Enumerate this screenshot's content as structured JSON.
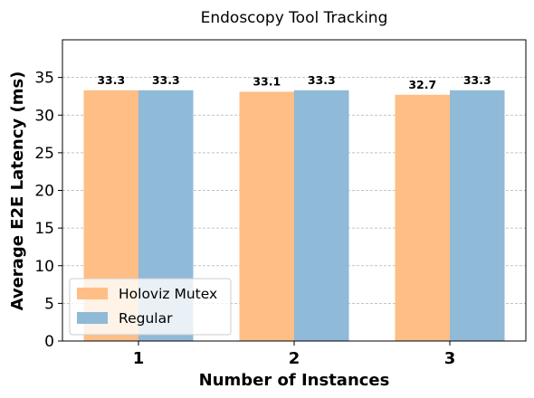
{
  "chart_data": {
    "type": "bar",
    "title": "Endoscopy Tool Tracking",
    "xlabel": "Number of Instances",
    "ylabel": "Average E2E Latency (ms)",
    "categories": [
      "1",
      "2",
      "3"
    ],
    "series": [
      {
        "name": "Holoviz Mutex",
        "values": [
          33.3,
          33.1,
          32.7
        ],
        "color": "#ffbe86"
      },
      {
        "name": "Regular",
        "values": [
          33.3,
          33.3,
          33.3
        ],
        "color": "#8fbad8"
      }
    ],
    "data_labels": [
      [
        "33.3",
        "33.1",
        "32.7"
      ],
      [
        "33.3",
        "33.3",
        "33.3"
      ]
    ],
    "ylim": [
      0,
      40
    ],
    "yticks": [
      "0",
      "5",
      "10",
      "15",
      "20",
      "25",
      "30",
      "35"
    ],
    "grid": "y-dashed",
    "legend": "lower-left"
  }
}
